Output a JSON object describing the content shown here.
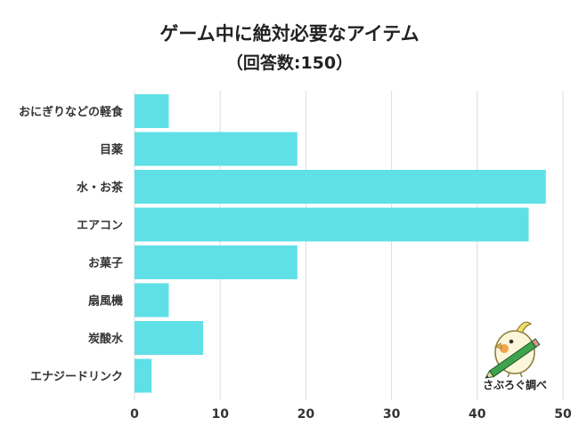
{
  "chart_data": {
    "type": "bar",
    "orientation": "horizontal",
    "title": "ゲーム中に絶対必要なアイテム",
    "subtitle": "（回答数:150）",
    "categories": [
      "おにぎりなどの軽食",
      "目薬",
      "水・お茶",
      "エアコン",
      "お菓子",
      "扇風機",
      "炭酸水",
      "エナジードリンク"
    ],
    "values": [
      4,
      19,
      48,
      46,
      19,
      4,
      8,
      2
    ],
    "xlim": [
      0,
      50
    ],
    "xticks": [
      0,
      10,
      20,
      30,
      40,
      50
    ],
    "bar_color": "#5ee0e6",
    "grid": true
  },
  "logo": {
    "text": "さぶろぐ調べ"
  }
}
